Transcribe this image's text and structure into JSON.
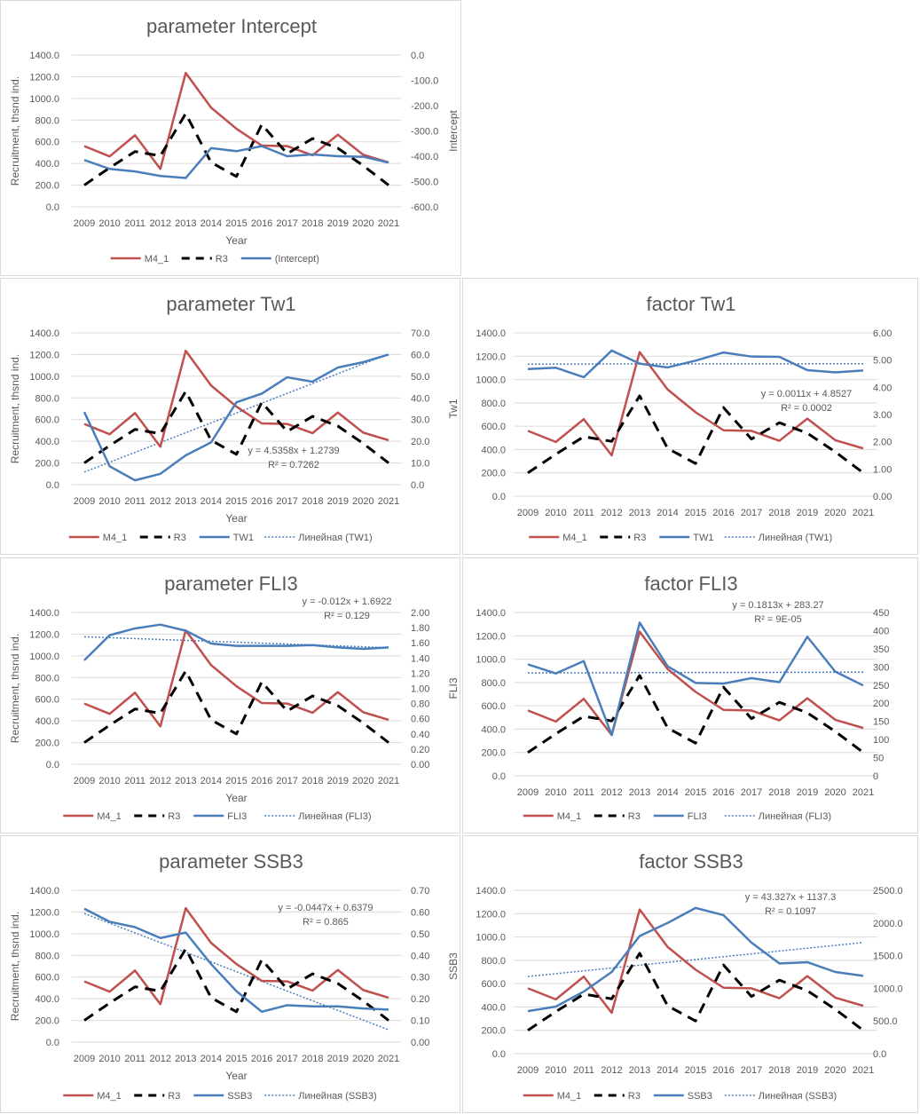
{
  "chart_data": [
    {
      "type": "line",
      "title": "parameter  Intercept",
      "xlabel": "Year",
      "ylabel": "Recruitment, thsnd ind.",
      "y2label": "Intercept",
      "categories": [
        "2009",
        "2010",
        "2011",
        "2012",
        "2013",
        "2014",
        "2015",
        "2016",
        "2017",
        "2018",
        "2019",
        "2020",
        "2021"
      ],
      "ylim": [
        0,
        1400
      ],
      "y2lim": [
        -600,
        0
      ],
      "left_ticks": [
        "0.0",
        "200.0",
        "400.0",
        "600.0",
        "800.0",
        "1000.0",
        "1200.0",
        "1400.0"
      ],
      "right_ticks": [
        "-600.0",
        "-500.0",
        "-400.0",
        "-300.0",
        "-200.0",
        "-100.0",
        "0.0"
      ],
      "series": [
        {
          "name": "M4_1",
          "axis": "left",
          "color": "#c0504d",
          "style": "solid",
          "values": [
            560,
            465,
            660,
            350,
            1235,
            915,
            720,
            565,
            560,
            475,
            665,
            480,
            410
          ]
        },
        {
          "name": "R3",
          "axis": "left",
          "color": "#000000",
          "style": "dash",
          "values": [
            200,
            360,
            510,
            470,
            860,
            410,
            280,
            760,
            490,
            630,
            540,
            380,
            200
          ]
        },
        {
          "name": "(Intercept)",
          "axis": "right",
          "color": "#4a7ebb",
          "style": "solid",
          "values": [
            -415,
            -450,
            -460,
            -478,
            -486,
            -368,
            -380,
            -360,
            -400,
            -393,
            -400,
            -402,
            -425
          ]
        }
      ]
    },
    {
      "type": "line",
      "title": "parameter  Tw1",
      "xlabel": "Year",
      "ylabel": "Recruitment, thsnd ind.",
      "y2label": "Tw1",
      "categories": [
        "2009",
        "2010",
        "2011",
        "2012",
        "2013",
        "2014",
        "2015",
        "2016",
        "2017",
        "2018",
        "2019",
        "2020",
        "2021"
      ],
      "ylim": [
        0,
        1400
      ],
      "y2lim": [
        0,
        70
      ],
      "left_ticks": [
        "0.0",
        "200.0",
        "400.0",
        "600.0",
        "800.0",
        "1000.0",
        "1200.0",
        "1400.0"
      ],
      "right_ticks": [
        "0.0",
        "10.0",
        "20.0",
        "30.0",
        "40.0",
        "50.0",
        "60.0",
        "70.0"
      ],
      "series": [
        {
          "name": "M4_1",
          "axis": "left",
          "color": "#c0504d",
          "style": "solid",
          "values": [
            560,
            465,
            660,
            350,
            1235,
            915,
            720,
            565,
            560,
            475,
            665,
            480,
            410
          ]
        },
        {
          "name": "R3",
          "axis": "left",
          "color": "#000000",
          "style": "dash",
          "values": [
            200,
            360,
            510,
            470,
            860,
            410,
            280,
            760,
            490,
            630,
            540,
            380,
            200
          ]
        },
        {
          "name": "TW1",
          "axis": "right",
          "color": "#4a7ebb",
          "style": "solid",
          "values": [
            33.5,
            8.5,
            2,
            5,
            13.5,
            19.5,
            38,
            42,
            49.5,
            47.5,
            54,
            56.5,
            60
          ]
        }
      ],
      "trendline": {
        "name": "Линейная (TW1)",
        "slope": 4.5358,
        "intercept": 1.2739,
        "equation": "y = 4.5358x + 1.2739",
        "r2": "R² = 0.7262"
      }
    },
    {
      "type": "line",
      "title": "factor Tw1",
      "xlabel": "",
      "ylabel": "",
      "y2label": "",
      "categories": [
        "2009",
        "2010",
        "2011",
        "2012",
        "2013",
        "2014",
        "2015",
        "2016",
        "2017",
        "2018",
        "2019",
        "2020",
        "2021"
      ],
      "ylim": [
        0,
        1400
      ],
      "y2lim": [
        0,
        6
      ],
      "left_ticks": [
        "0.0",
        "200.0",
        "400.0",
        "600.0",
        "800.0",
        "1000.0",
        "1200.0",
        "1400.0"
      ],
      "right_ticks": [
        "0.00",
        "1.00",
        "2.00",
        "3.00",
        "4.00",
        "5.00",
        "6.00"
      ],
      "series": [
        {
          "name": "M4_1",
          "axis": "left",
          "color": "#c0504d",
          "style": "solid",
          "values": [
            560,
            465,
            660,
            350,
            1235,
            915,
            720,
            565,
            560,
            475,
            665,
            480,
            410
          ]
        },
        {
          "name": "R3",
          "axis": "left",
          "color": "#000000",
          "style": "dash",
          "values": [
            200,
            360,
            510,
            470,
            860,
            410,
            280,
            760,
            490,
            630,
            540,
            380,
            200
          ]
        },
        {
          "name": "TW1",
          "axis": "right",
          "color": "#4a7ebb",
          "style": "solid",
          "values": [
            4.67,
            4.72,
            4.37,
            5.35,
            4.87,
            4.73,
            4.98,
            5.28,
            5.13,
            5.12,
            4.63,
            4.55,
            4.62
          ]
        }
      ],
      "trendline": {
        "name": "Линейная (TW1)",
        "slope": 0.0011,
        "intercept": 4.8527,
        "equation": "y = 0.0011x + 4.8527",
        "r2": "R² = 0.0002"
      }
    },
    {
      "type": "line",
      "title": "parameter  FLI3",
      "xlabel": "Year",
      "ylabel": "Recruitment, thsnd ind.",
      "y2label": "FLI3",
      "categories": [
        "2009",
        "2010",
        "2011",
        "2012",
        "2013",
        "2014",
        "2015",
        "2016",
        "2017",
        "2018",
        "2019",
        "2020",
        "2021"
      ],
      "ylim": [
        0,
        1400
      ],
      "y2lim": [
        0,
        2
      ],
      "left_ticks": [
        "0.0",
        "200.0",
        "400.0",
        "600.0",
        "800.0",
        "1000.0",
        "1200.0",
        "1400.0"
      ],
      "right_ticks": [
        "0.00",
        "0.20",
        "0.40",
        "0.60",
        "0.80",
        "1.00",
        "1.20",
        "1.40",
        "1.60",
        "1.80",
        "2.00"
      ],
      "series": [
        {
          "name": "M4_1",
          "axis": "left",
          "color": "#c0504d",
          "style": "solid",
          "values": [
            560,
            465,
            660,
            350,
            1235,
            915,
            720,
            565,
            560,
            475,
            665,
            480,
            410
          ]
        },
        {
          "name": "R3",
          "axis": "left",
          "color": "#000000",
          "style": "dash",
          "values": [
            200,
            360,
            510,
            470,
            860,
            410,
            280,
            760,
            490,
            630,
            540,
            380,
            200
          ]
        },
        {
          "name": "FLI3",
          "axis": "right",
          "color": "#4a7ebb",
          "style": "solid",
          "values": [
            1.37,
            1.7,
            1.79,
            1.84,
            1.76,
            1.59,
            1.56,
            1.56,
            1.56,
            1.57,
            1.54,
            1.52,
            1.54
          ]
        }
      ],
      "trendline": {
        "name": "Линейная (FLI3)",
        "slope": -0.012,
        "intercept": 1.6922,
        "equation": "y = -0.012x + 1.6922",
        "r2": "R² = 0.129"
      }
    },
    {
      "type": "line",
      "title": "factor FLI3",
      "xlabel": "",
      "ylabel": "",
      "y2label": "",
      "categories": [
        "2009",
        "2010",
        "2011",
        "2012",
        "2013",
        "2014",
        "2015",
        "2016",
        "2017",
        "2018",
        "2019",
        "2020",
        "2021"
      ],
      "ylim": [
        0,
        1400
      ],
      "y2lim": [
        0,
        450
      ],
      "left_ticks": [
        "0.0",
        "200.0",
        "400.0",
        "600.0",
        "800.0",
        "1000.0",
        "1200.0",
        "1400.0"
      ],
      "right_ticks": [
        "0",
        "50",
        "100",
        "150",
        "200",
        "250",
        "300",
        "350",
        "400",
        "450"
      ],
      "series": [
        {
          "name": "M4_1",
          "axis": "left",
          "color": "#c0504d",
          "style": "solid",
          "values": [
            560,
            465,
            660,
            350,
            1235,
            915,
            720,
            565,
            560,
            475,
            665,
            480,
            410
          ]
        },
        {
          "name": "R3",
          "axis": "left",
          "color": "#000000",
          "style": "dash",
          "values": [
            200,
            360,
            510,
            470,
            860,
            410,
            280,
            760,
            490,
            630,
            540,
            380,
            200
          ]
        },
        {
          "name": "FLI3",
          "axis": "right",
          "color": "#4a7ebb",
          "style": "solid",
          "values": [
            307,
            282,
            316,
            112,
            422,
            302,
            256,
            254,
            269,
            258,
            383,
            287,
            249
          ]
        }
      ],
      "trendline": {
        "name": "Линейная (FLI3)",
        "slope": 0.1813,
        "intercept": 283.27,
        "equation": "y = 0.1813x + 283.27",
        "r2": "R² = 9E-05"
      }
    },
    {
      "type": "line",
      "title": "parameter  SSB3",
      "xlabel": "Year",
      "ylabel": "Recruitment, thsnd ind.",
      "y2label": "SSB3",
      "categories": [
        "2009",
        "2010",
        "2011",
        "2012",
        "2013",
        "2014",
        "2015",
        "2016",
        "2017",
        "2018",
        "2019",
        "2020",
        "2021"
      ],
      "ylim": [
        0,
        1400
      ],
      "y2lim": [
        0,
        0.7
      ],
      "left_ticks": [
        "0.0",
        "200.0",
        "400.0",
        "600.0",
        "800.0",
        "1000.0",
        "1200.0",
        "1400.0"
      ],
      "right_ticks": [
        "0.00",
        "0.10",
        "0.20",
        "0.30",
        "0.40",
        "0.50",
        "0.60",
        "0.70"
      ],
      "series": [
        {
          "name": "M4_1",
          "axis": "left",
          "color": "#c0504d",
          "style": "solid",
          "values": [
            560,
            465,
            660,
            350,
            1235,
            915,
            720,
            565,
            560,
            475,
            665,
            480,
            410
          ]
        },
        {
          "name": "R3",
          "axis": "left",
          "color": "#000000",
          "style": "dash",
          "values": [
            200,
            360,
            510,
            470,
            860,
            410,
            280,
            760,
            490,
            630,
            540,
            380,
            200
          ]
        },
        {
          "name": "SSB3",
          "axis": "right",
          "color": "#4a7ebb",
          "style": "solid",
          "values": [
            0.615,
            0.555,
            0.53,
            0.48,
            0.505,
            0.36,
            0.235,
            0.14,
            0.17,
            0.165,
            0.165,
            0.155,
            0.15
          ]
        }
      ],
      "trendline": {
        "name": "Линейная (SSB3)",
        "slope": -0.0447,
        "intercept": 0.6379,
        "equation": "y = -0.0447x + 0.6379",
        "r2": "R² = 0.865"
      }
    },
    {
      "type": "line",
      "title": "factor SSB3",
      "xlabel": "",
      "ylabel": "",
      "y2label": "",
      "categories": [
        "2009",
        "2010",
        "2011",
        "2012",
        "2013",
        "2014",
        "2015",
        "2016",
        "2017",
        "2018",
        "2019",
        "2020",
        "2021"
      ],
      "ylim": [
        0,
        1400
      ],
      "y2lim": [
        0,
        2500
      ],
      "left_ticks": [
        "0.0",
        "200.0",
        "400.0",
        "600.0",
        "800.0",
        "1000.0",
        "1200.0",
        "1400.0"
      ],
      "right_ticks": [
        "0.0",
        "500.0",
        "1000.0",
        "1500.0",
        "2000.0",
        "2500.0"
      ],
      "series": [
        {
          "name": "M4_1",
          "axis": "left",
          "color": "#c0504d",
          "style": "solid",
          "values": [
            560,
            465,
            660,
            350,
            1235,
            915,
            720,
            565,
            560,
            475,
            665,
            480,
            410
          ]
        },
        {
          "name": "R3",
          "axis": "left",
          "color": "#000000",
          "style": "dash",
          "values": [
            200,
            360,
            510,
            470,
            860,
            410,
            280,
            760,
            490,
            630,
            540,
            380,
            200
          ]
        },
        {
          "name": "SSB3",
          "axis": "right",
          "color": "#4a7ebb",
          "style": "solid",
          "values": [
            650,
            720,
            950,
            1250,
            1800,
            2000,
            2230,
            2120,
            1700,
            1380,
            1400,
            1250,
            1190
          ]
        }
      ],
      "trendline": {
        "name": "Линейная (SSB3)",
        "slope": 43.327,
        "intercept": 1137.3,
        "equation": "y = 43.327x + 1137.3",
        "r2": "R² = 0.1097"
      }
    }
  ]
}
